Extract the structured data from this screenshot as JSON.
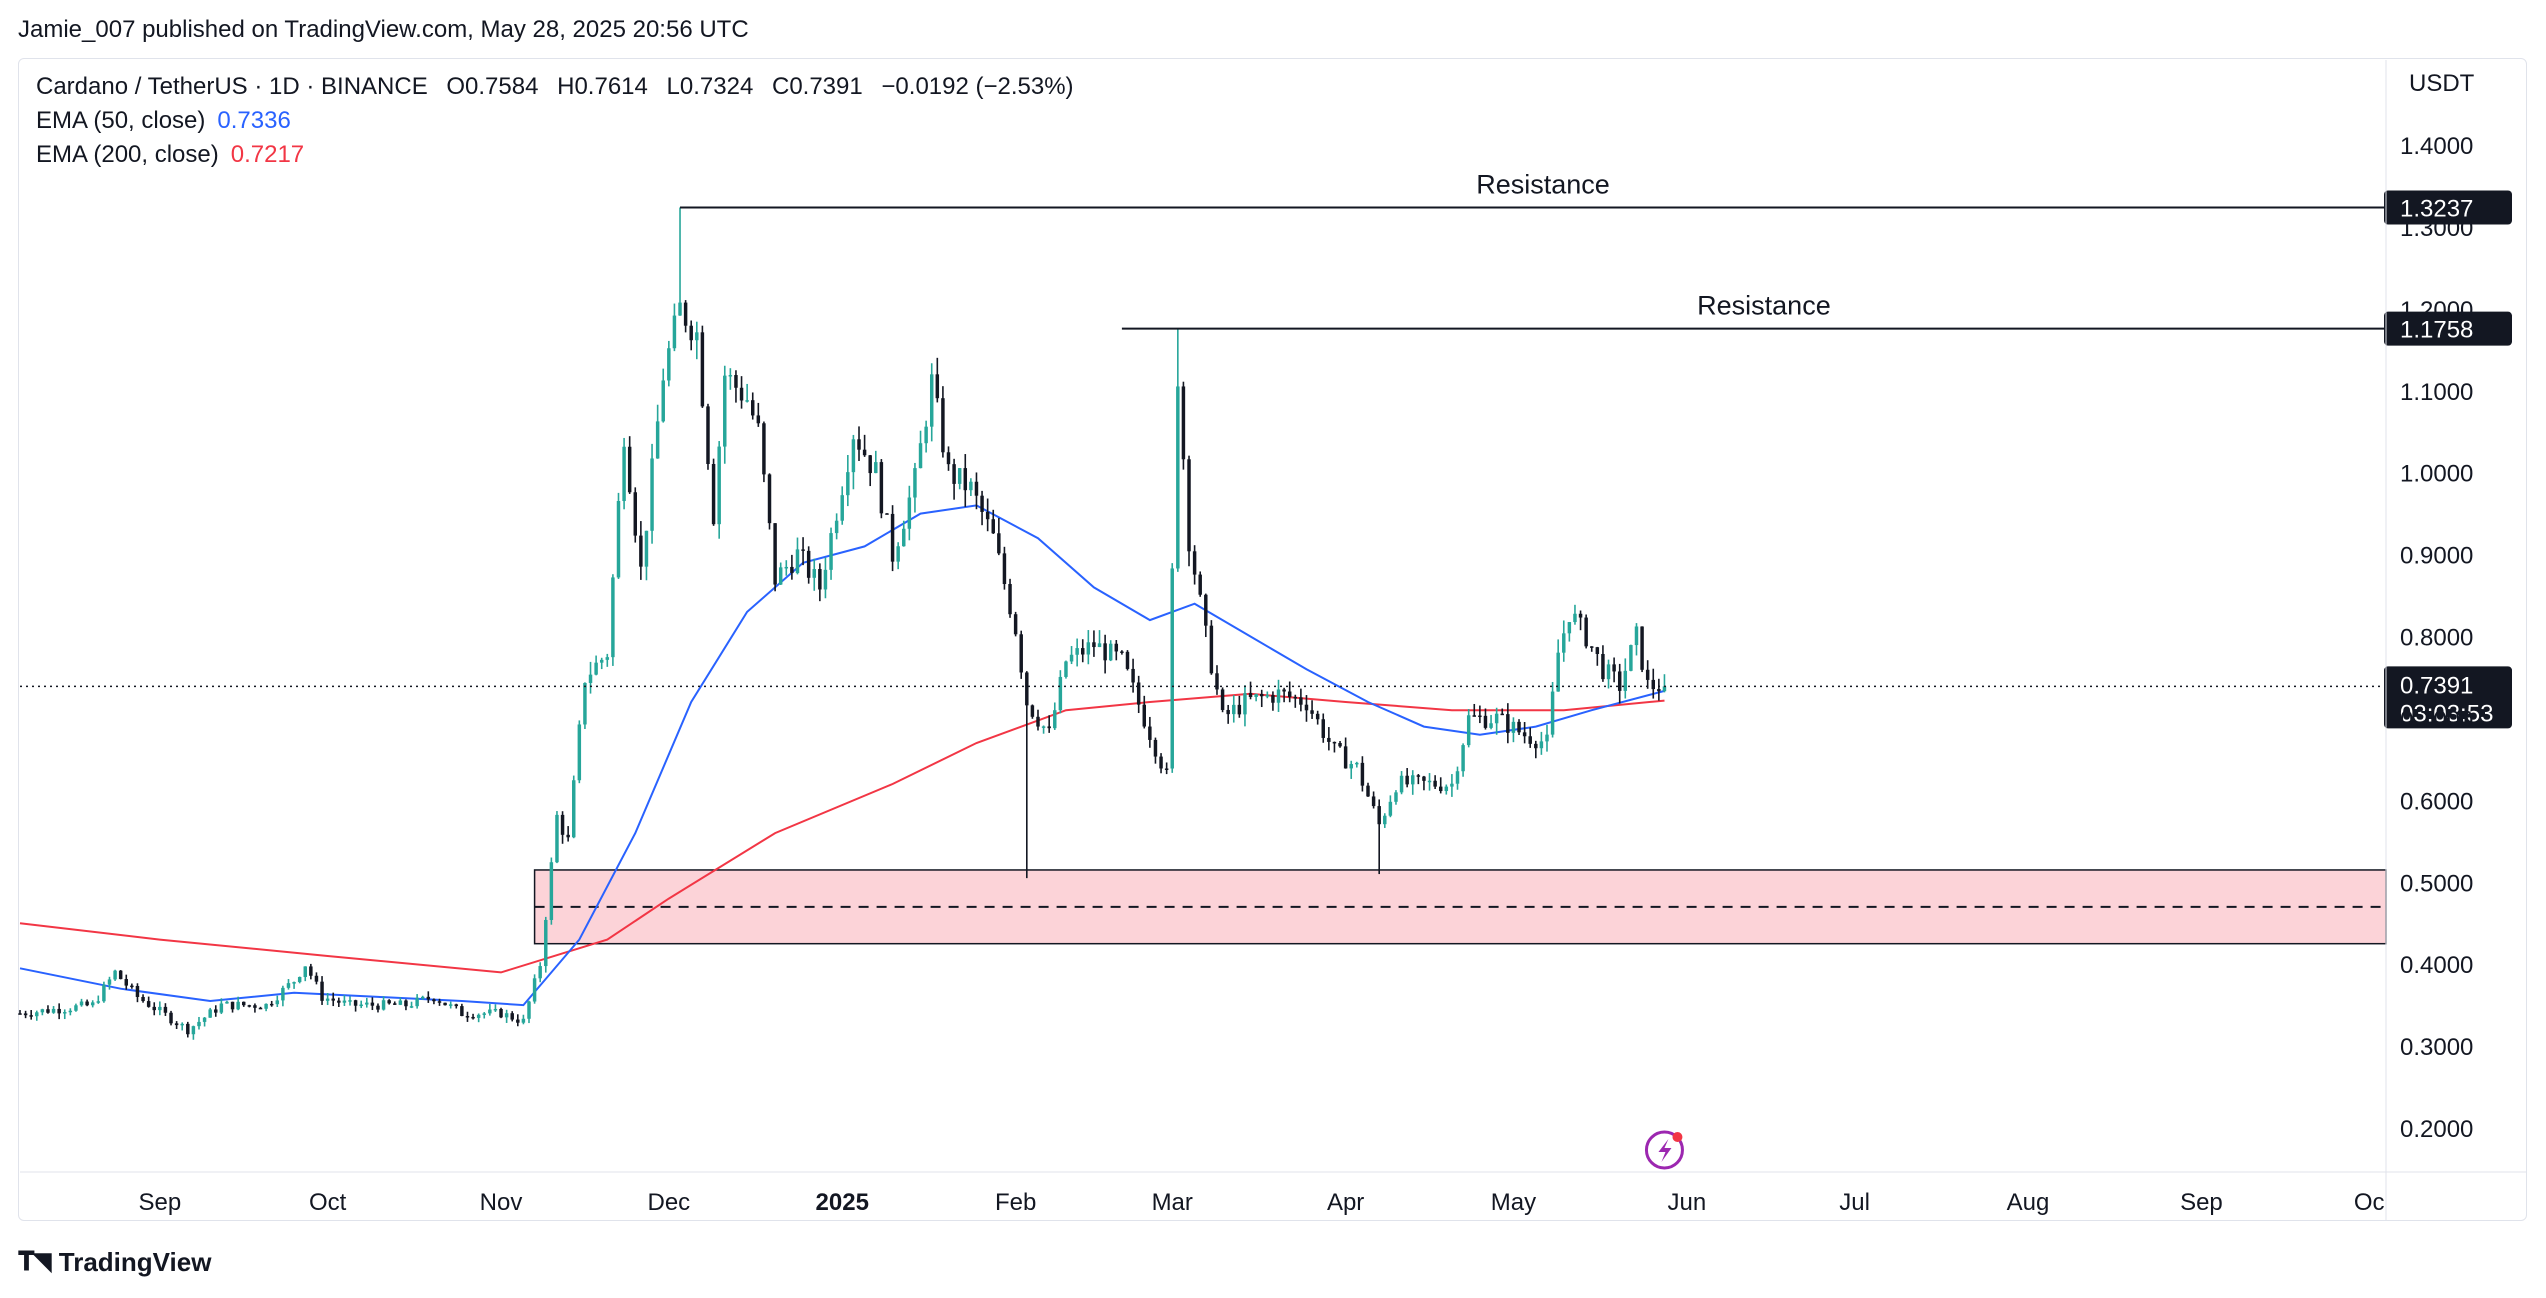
{
  "publish_line": "Jamie_007 published on TradingView.com, May 28, 2025 20:56 UTC",
  "legend": {
    "symbol": "Cardano / TetherUS · 1D · BINANCE",
    "open": "O0.7584",
    "high": "H0.7614",
    "low": "L0.7324",
    "close": "C0.7391",
    "change": "−0.0192 (−2.53%)",
    "ema50_label": "EMA (50, close)",
    "ema50_value": "0.7336",
    "ema200_label": "EMA (200, close)",
    "ema200_value": "0.7217"
  },
  "currency": "USDT",
  "footer": {
    "brand": "TradingView",
    "logo_icon": "tradingview-logo-icon"
  },
  "colors": {
    "up": "#26a69a",
    "down": "#131722",
    "ema50": "#2962ff",
    "ema200": "#f23645",
    "zone_fill": "#fcd3d8",
    "price_label_bg": "#131722"
  },
  "chart_data": {
    "type": "candlestick",
    "title": "Cardano / TetherUS · 1D · BINANCE",
    "y_axis_ticks": [
      "1.4000",
      "1.3000",
      "1.2000",
      "1.1000",
      "1.0000",
      "0.9000",
      "0.8000",
      "0.7000",
      "0.6000",
      "0.5000",
      "0.4000",
      "0.3000",
      "0.2000"
    ],
    "ylim": [
      0.145,
      1.49
    ],
    "x_axis_ticks": [
      {
        "label": "Sep",
        "date": "2024-09-01"
      },
      {
        "label": "Oct",
        "date": "2024-10-01"
      },
      {
        "label": "Nov",
        "date": "2024-11-01"
      },
      {
        "label": "Dec",
        "date": "2024-12-01"
      },
      {
        "label": "2025",
        "date": "2025-01-01",
        "bold": true
      },
      {
        "label": "Feb",
        "date": "2025-02-01"
      },
      {
        "label": "Mar",
        "date": "2025-03-01"
      },
      {
        "label": "Apr",
        "date": "2025-04-01"
      },
      {
        "label": "May",
        "date": "2025-05-01"
      },
      {
        "label": "Jun",
        "date": "2025-06-01"
      },
      {
        "label": "Jul",
        "date": "2025-07-01"
      },
      {
        "label": "Aug",
        "date": "2025-08-01"
      },
      {
        "label": "Sep",
        "date": "2025-09-01"
      },
      {
        "label": "Oc",
        "date": "2025-10-01"
      }
    ],
    "xlim": [
      "2024-08-07",
      "2025-10-04"
    ],
    "price_path": [
      [
        "2024-08-07",
        0.34
      ],
      [
        "2024-08-20",
        0.35
      ],
      [
        "2024-08-24",
        0.39
      ],
      [
        "2024-08-28",
        0.36
      ],
      [
        "2024-09-06",
        0.32
      ],
      [
        "2024-09-12",
        0.35
      ],
      [
        "2024-09-20",
        0.35
      ],
      [
        "2024-09-25",
        0.38
      ],
      [
        "2024-09-27",
        0.4
      ],
      [
        "2024-09-30",
        0.36
      ],
      [
        "2024-10-05",
        0.35
      ],
      [
        "2024-10-15",
        0.35
      ],
      [
        "2024-10-20",
        0.36
      ],
      [
        "2024-10-25",
        0.34
      ],
      [
        "2024-11-01",
        0.34
      ],
      [
        "2024-11-05",
        0.33
      ],
      [
        "2024-11-08",
        0.4
      ],
      [
        "2024-11-11",
        0.58
      ],
      [
        "2024-11-13",
        0.55
      ],
      [
        "2024-11-16",
        0.75
      ],
      [
        "2024-11-20",
        0.78
      ],
      [
        "2024-11-23",
        1.05
      ],
      [
        "2024-11-26",
        0.88
      ],
      [
        "2024-11-30",
        1.12
      ],
      [
        "2024-12-03",
        1.2
      ],
      [
        "2024-12-06",
        1.17
      ],
      [
        "2024-12-09",
        0.95
      ],
      [
        "2024-12-11",
        1.12
      ],
      [
        "2024-12-15",
        1.09
      ],
      [
        "2024-12-17",
        1.05
      ],
      [
        "2024-12-20",
        0.87
      ],
      [
        "2024-12-24",
        0.9
      ],
      [
        "2024-12-28",
        0.86
      ],
      [
        "2025-01-03",
        1.05
      ],
      [
        "2025-01-07",
        1.0
      ],
      [
        "2025-01-10",
        0.9
      ],
      [
        "2025-01-14",
        0.99
      ],
      [
        "2025-01-17",
        1.11
      ],
      [
        "2025-01-20",
        1.0
      ],
      [
        "2025-01-24",
        0.98
      ],
      [
        "2025-01-28",
        0.92
      ],
      [
        "2025-02-01",
        0.81
      ],
      [
        "2025-02-03",
        0.72
      ],
      [
        "2025-02-07",
        0.68
      ],
      [
        "2025-02-10",
        0.77
      ],
      [
        "2025-02-15",
        0.79
      ],
      [
        "2025-02-20",
        0.77
      ],
      [
        "2025-02-24",
        0.7
      ],
      [
        "2025-02-28",
        0.63
      ],
      [
        "2025-03-02",
        1.12
      ],
      [
        "2025-03-04",
        0.92
      ],
      [
        "2025-03-07",
        0.8
      ],
      [
        "2025-03-10",
        0.7
      ],
      [
        "2025-03-14",
        0.72
      ],
      [
        "2025-03-20",
        0.73
      ],
      [
        "2025-03-25",
        0.72
      ],
      [
        "2025-03-30",
        0.66
      ],
      [
        "2025-04-03",
        0.64
      ],
      [
        "2025-04-07",
        0.57
      ],
      [
        "2025-04-10",
        0.62
      ],
      [
        "2025-04-15",
        0.62
      ],
      [
        "2025-04-20",
        0.62
      ],
      [
        "2025-04-23",
        0.7
      ],
      [
        "2025-04-28",
        0.7
      ],
      [
        "2025-05-03",
        0.68
      ],
      [
        "2025-05-07",
        0.67
      ],
      [
        "2025-05-09",
        0.78
      ],
      [
        "2025-05-11",
        0.83
      ],
      [
        "2025-05-14",
        0.8
      ],
      [
        "2025-05-17",
        0.76
      ],
      [
        "2025-05-20",
        0.74
      ],
      [
        "2025-05-23",
        0.8
      ],
      [
        "2025-05-25",
        0.74
      ],
      [
        "2025-05-28",
        0.7391
      ]
    ],
    "spikes": [
      {
        "date": "2025-02-03",
        "low": 0.505
      },
      {
        "date": "2025-03-02",
        "high": 1.1758
      },
      {
        "date": "2024-12-03",
        "high": 1.3237
      },
      {
        "date": "2025-04-07",
        "low": 0.51
      }
    ],
    "ema50_path": [
      [
        "2024-08-07",
        0.395
      ],
      [
        "2024-08-25",
        0.37
      ],
      [
        "2024-09-10",
        0.355
      ],
      [
        "2024-09-25",
        0.365
      ],
      [
        "2024-10-10",
        0.36
      ],
      [
        "2024-10-25",
        0.355
      ],
      [
        "2024-11-05",
        0.35
      ],
      [
        "2024-11-15",
        0.43
      ],
      [
        "2024-11-25",
        0.56
      ],
      [
        "2024-12-05",
        0.72
      ],
      [
        "2024-12-15",
        0.83
      ],
      [
        "2024-12-25",
        0.89
      ],
      [
        "2025-01-05",
        0.91
      ],
      [
        "2025-01-15",
        0.95
      ],
      [
        "2025-01-25",
        0.96
      ],
      [
        "2025-02-05",
        0.92
      ],
      [
        "2025-02-15",
        0.86
      ],
      [
        "2025-02-25",
        0.82
      ],
      [
        "2025-03-05",
        0.84
      ],
      [
        "2025-03-15",
        0.8
      ],
      [
        "2025-03-25",
        0.76
      ],
      [
        "2025-04-05",
        0.72
      ],
      [
        "2025-04-15",
        0.69
      ],
      [
        "2025-04-25",
        0.68
      ],
      [
        "2025-05-05",
        0.69
      ],
      [
        "2025-05-15",
        0.71
      ],
      [
        "2025-05-28",
        0.7336
      ]
    ],
    "ema200_path": [
      [
        "2024-08-07",
        0.45
      ],
      [
        "2024-09-01",
        0.43
      ],
      [
        "2024-10-01",
        0.41
      ],
      [
        "2024-11-01",
        0.39
      ],
      [
        "2024-11-20",
        0.43
      ],
      [
        "2024-12-01",
        0.48
      ],
      [
        "2024-12-20",
        0.56
      ],
      [
        "2025-01-10",
        0.62
      ],
      [
        "2025-01-25",
        0.67
      ],
      [
        "2025-02-10",
        0.71
      ],
      [
        "2025-02-25",
        0.72
      ],
      [
        "2025-03-15",
        0.73
      ],
      [
        "2025-04-01",
        0.72
      ],
      [
        "2025-04-20",
        0.71
      ],
      [
        "2025-05-10",
        0.71
      ],
      [
        "2025-05-28",
        0.7217
      ]
    ],
    "resistance_lines": [
      {
        "label": "Resistance",
        "price": 1.3237,
        "price_label": "1.3237",
        "start": "2024-12-03"
      },
      {
        "label": "Resistance",
        "price": 1.1758,
        "price_label": "1.1758",
        "start": "2025-02-20"
      }
    ],
    "support_zone": {
      "top": 0.515,
      "bottom": 0.425,
      "mid": 0.47,
      "start": "2024-11-07"
    },
    "current_price": {
      "value": 0.7391,
      "label": "0.7391",
      "countdown": "03:03:53"
    },
    "tradingview_badge_icon": "lightning-icon"
  }
}
